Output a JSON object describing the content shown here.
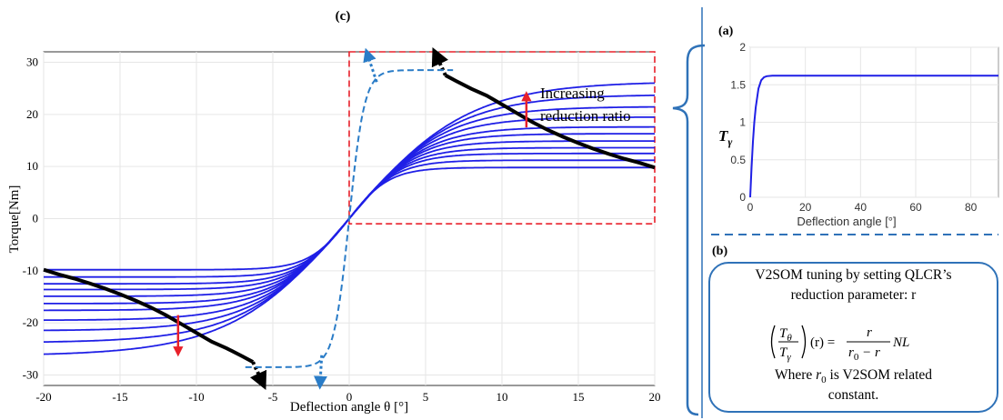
{
  "panel_labels": {
    "a": "(a)",
    "b": "(b)",
    "c": "(c)"
  },
  "colors": {
    "curve": "#1f1fe6",
    "envelope": "#000000",
    "highlight_box": "#e8202a",
    "dashed_path": "#2a7cc7",
    "arrow_red": "#e8202a",
    "bracket": "#2f72b8",
    "grid": "#e6e6e6"
  },
  "annotation": {
    "line1": "Increasing",
    "line2": "reduction ratio"
  },
  "info_box": {
    "line1": "V2SOM tuning by setting QLCR’s",
    "line2": "reduction parameter: r",
    "formula_tail_r": "(r) =",
    "formula_num": "r",
    "formula_den_r": "r",
    "formula_den_sub": "0",
    "formula_den_rest": " − r",
    "formula_nl": "NL",
    "formula_t": "T",
    "formula_theta": "θ",
    "formula_gamma": "γ",
    "where_pre": "Where ",
    "where_r": "r",
    "where_sub": "0",
    "where_post": " is V2SOM related",
    "line_last": "constant."
  },
  "chart_data": [
    {
      "id": "c",
      "type": "line",
      "title": "(c)",
      "xlabel": "Deflection angle θ [°]",
      "ylabel": "Torque[Nm]",
      "xlim": [
        -20,
        20
      ],
      "ylim": [
        -32,
        32
      ],
      "xticks": [
        -20,
        -15,
        -10,
        -5,
        0,
        5,
        10,
        15,
        20
      ],
      "yticks": [
        30,
        20,
        10,
        0,
        -10,
        -20,
        -30
      ],
      "grid": true,
      "series_count": 12,
      "saturation_torques": [
        9.8,
        11.2,
        12.5,
        13.6,
        14.9,
        16.3,
        17.6,
        19.5,
        21.5,
        23.8,
        26.3
      ],
      "envelope": {
        "x": [
          6.3,
          7,
          8,
          9,
          10,
          11,
          12,
          13,
          14,
          15,
          16,
          17,
          18,
          19,
          20
        ],
        "y": [
          27.5,
          26.4,
          24.9,
          23.6,
          21.9,
          20.2,
          18.5,
          17.0,
          15.7,
          14.5,
          13.4,
          12.4,
          11.5,
          10.7,
          9.8
        ]
      },
      "highlight_region": {
        "x": [
          0,
          20
        ],
        "y": [
          -1,
          32
        ]
      },
      "annotation_arrow_red_up": {
        "x": 11.6,
        "y": [
          17.5,
          23.5
        ]
      },
      "annotation_arrow_red_down": {
        "x": -11.2,
        "y": [
          -18.5,
          -25.5
        ]
      }
    },
    {
      "id": "a",
      "type": "line",
      "title": "(a)",
      "xlabel": "Deflection angle [°]",
      "ylabel": "Tγ",
      "xlim": [
        0,
        90
      ],
      "ylim": [
        0,
        2
      ],
      "xticks": [
        0,
        20,
        40,
        60,
        80
      ],
      "yticks": [
        2,
        1.5,
        1,
        0.5,
        0
      ],
      "grid": true,
      "series": [
        {
          "x": [
            0,
            0.5,
            1,
            1.5,
            2,
            3,
            4,
            5,
            6,
            8,
            10,
            20,
            40,
            60,
            80,
            90
          ],
          "y": [
            0,
            0.4,
            0.74,
            1.0,
            1.2,
            1.45,
            1.56,
            1.6,
            1.615,
            1.62,
            1.62,
            1.62,
            1.62,
            1.62,
            1.62,
            1.62
          ]
        }
      ]
    }
  ]
}
